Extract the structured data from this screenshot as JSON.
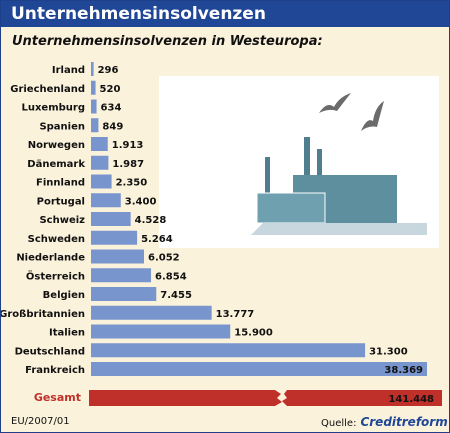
{
  "header": {
    "title": "Unternehmensinsolvenzen"
  },
  "colors": {
    "title_bar": "#1f4796",
    "bar": "#7896cd",
    "total_bar": "#c0302a",
    "background": "#fbf2dc"
  },
  "chart_data": {
    "type": "bar",
    "orientation": "horizontal",
    "title": "Unternehmensinsolvenzen in Westeuropa:",
    "categories": [
      "Irland",
      "Griechenland",
      "Luxemburg",
      "Spanien",
      "Norwegen",
      "Dänemark",
      "Finnland",
      "Portugal",
      "Schweiz",
      "Schweden",
      "Niederlande",
      "Österreich",
      "Belgien",
      "Großbritannien",
      "Italien",
      "Deutschland",
      "Frankreich"
    ],
    "values": [
      296,
      520,
      634,
      849,
      1913,
      1987,
      2350,
      3400,
      4528,
      5264,
      6052,
      6854,
      7455,
      13777,
      15900,
      31300,
      38369
    ],
    "value_labels": [
      "296",
      "520",
      "634",
      "849",
      "1.913",
      "1.987",
      "2.350",
      "3.400",
      "4.528",
      "5.264",
      "6.052",
      "6.854",
      "7.455",
      "13.777",
      "15.900",
      "31.300",
      "38.369"
    ],
    "total": {
      "label": "Gesamt",
      "value": 141448,
      "value_label": "141.448"
    },
    "xlim": [
      0,
      38369
    ],
    "grid": false,
    "legend": "none"
  },
  "illustration": {
    "type": "factory-with-birds"
  },
  "footer": {
    "left": "EU/2007/01",
    "source_label": "Quelle:",
    "source_brand": "Creditreform"
  }
}
